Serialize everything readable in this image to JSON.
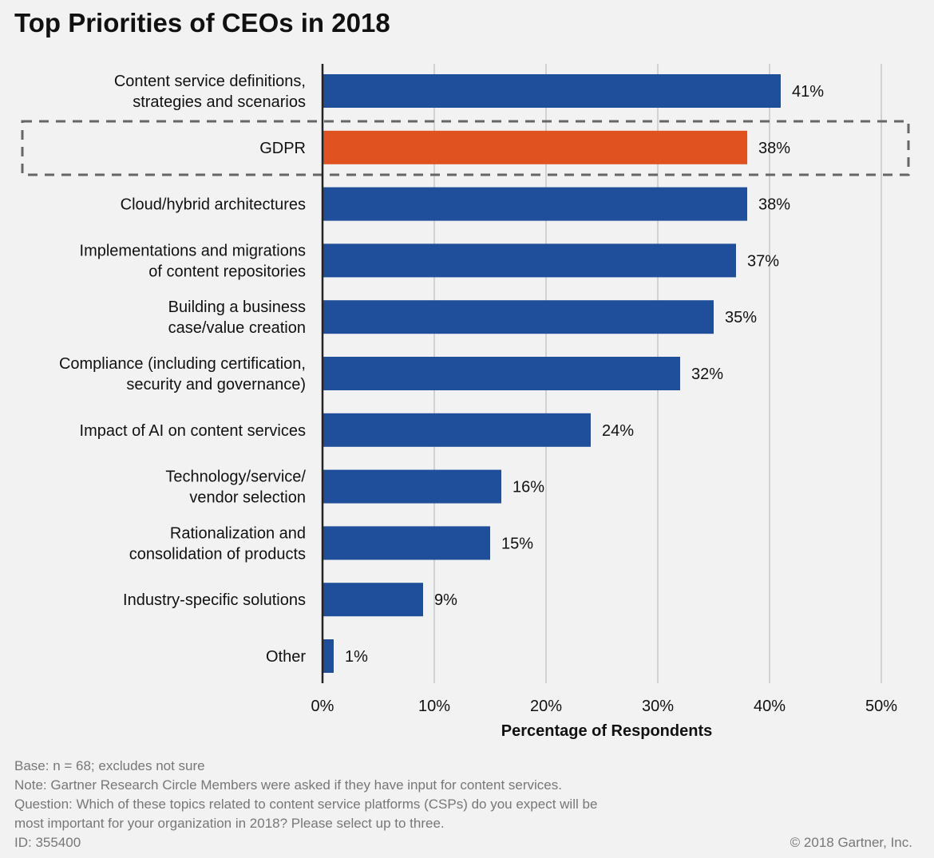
{
  "chart_data": {
    "type": "bar",
    "orientation": "horizontal",
    "title": "Top Priorities of CEOs in 2018",
    "xlabel": "Percentage of Respondents",
    "ylabel": "",
    "xlim": [
      0,
      50
    ],
    "xticks": [
      "0%",
      "10%",
      "20%",
      "30%",
      "40%",
      "50%"
    ],
    "grid": true,
    "categories": [
      [
        "Content service definitions,",
        "strategies and scenarios"
      ],
      [
        "GDPR"
      ],
      [
        "Cloud/hybrid architectures"
      ],
      [
        "Implementations and migrations",
        "of content repositories"
      ],
      [
        "Building a business",
        "case/value creation"
      ],
      [
        "Compliance (including certification,",
        "security and governance)"
      ],
      [
        "Impact of AI on content services"
      ],
      [
        "Technology/service/",
        "vendor selection"
      ],
      [
        "Rationalization and",
        "consolidation of products"
      ],
      [
        "Industry-specific solutions"
      ],
      [
        "Other"
      ]
    ],
    "values": [
      41,
      38,
      38,
      37,
      35,
      32,
      24,
      16,
      15,
      9,
      1
    ],
    "value_labels": [
      "41%",
      "38%",
      "38%",
      "37%",
      "35%",
      "32%",
      "24%",
      "16%",
      "15%",
      "9%",
      "1%"
    ],
    "highlighted_index": 1,
    "colors": {
      "bar": "#1f4e9a",
      "highlight": "#e0521f",
      "grid": "#c8c8c8",
      "background": "#f2f2f2"
    }
  },
  "footer": {
    "lines": [
      "Base: n = 68; excludes not sure",
      "Note: Gartner Research Circle Members were asked if they have input for content services.",
      "Question: Which of these topics related to content service platforms (CSPs) do you expect will be",
      "most important for your organization in 2018? Please select up to three.",
      "ID: 355400"
    ],
    "copyright": "© 2018 Gartner, Inc."
  }
}
